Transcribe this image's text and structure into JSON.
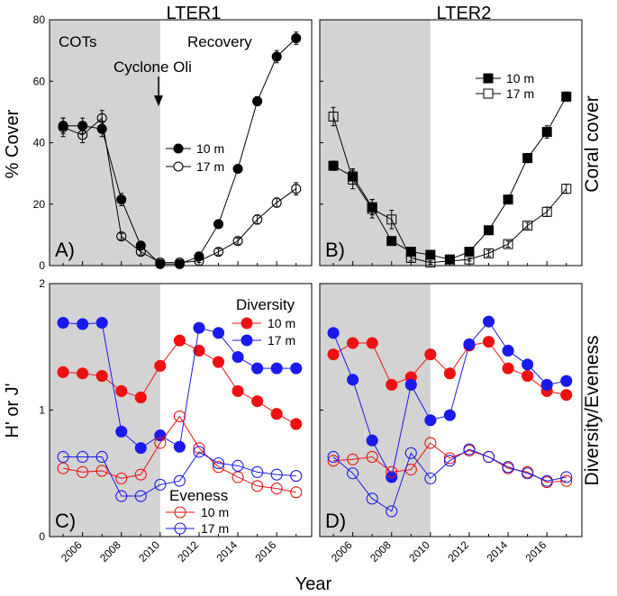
{
  "figure": {
    "col_titles": [
      "LTER1",
      "LTER2"
    ],
    "xlabel": "Year",
    "ylabel_top": "% Cover",
    "ylabel_bottom": "H' or J'",
    "side_top": "Coral cover",
    "side_bottom": "Diversity/Eveness"
  },
  "chart_data": [
    {
      "id": "A",
      "label": "A)",
      "type": "line",
      "title": "LTER1",
      "xlim": [
        2004.3,
        2017.8
      ],
      "ylim": [
        0,
        80
      ],
      "yticks": [
        0,
        20,
        40,
        60,
        80
      ],
      "xticks": [
        2006,
        2008,
        2010,
        2012,
        2014,
        2016
      ],
      "shade_x": [
        2004.3,
        2010
      ],
      "annotations": [
        "COTs",
        "Recovery",
        "Cyclone Oli"
      ],
      "legend": [
        "10 m",
        "17 m"
      ],
      "series": [
        {
          "name": "10 m",
          "marker": "circle",
          "filled": true,
          "color": "#000000",
          "x": [
            2005,
            2006,
            2007,
            2008,
            2009,
            2010,
            2011,
            2012,
            2013,
            2014,
            2015,
            2016,
            2017
          ],
          "y": [
            45.5,
            45.5,
            44.5,
            21.5,
            6.5,
            0.5,
            0.5,
            3,
            13.5,
            31.5,
            53.5,
            68,
            74
          ],
          "err": [
            2.5,
            2.5,
            2.5,
            2,
            1,
            0.5,
            0.5,
            1,
            1,
            1,
            1.5,
            2,
            2
          ]
        },
        {
          "name": "17 m",
          "marker": "circle",
          "filled": false,
          "color": "#000000",
          "x": [
            2005,
            2006,
            2007,
            2008,
            2009,
            2010,
            2011,
            2012,
            2013,
            2014,
            2015,
            2016,
            2017
          ],
          "y": [
            45,
            42.5,
            48,
            9.5,
            4.5,
            1,
            1,
            1.5,
            4.5,
            8,
            15,
            20.5,
            25
          ],
          "err": [
            3,
            2.5,
            2.5,
            1,
            1,
            0.5,
            0.5,
            0.5,
            1,
            1,
            1.5,
            1.5,
            2
          ]
        }
      ]
    },
    {
      "id": "B",
      "label": "B)",
      "type": "line",
      "title": "LTER2",
      "xlim": [
        2004.3,
        2017.8
      ],
      "ylim": [
        0,
        80
      ],
      "yticks": [
        0,
        20,
        40,
        60,
        80
      ],
      "xticks": [
        2006,
        2008,
        2010,
        2012,
        2014,
        2016
      ],
      "shade_x": [
        2004.3,
        2010
      ],
      "legend": [
        "10 m",
        "17 m"
      ],
      "series": [
        {
          "name": "10 m",
          "marker": "square",
          "filled": true,
          "color": "#000000",
          "x": [
            2005,
            2006,
            2007,
            2008,
            2009,
            2010,
            2011,
            2012,
            2013,
            2014,
            2015,
            2016,
            2017
          ],
          "y": [
            32.5,
            29,
            19,
            8,
            4.5,
            3.5,
            2,
            4.5,
            11.5,
            21.5,
            35,
            43.5,
            55
          ],
          "err": [
            1.5,
            2.5,
            2.5,
            1,
            1,
            1,
            0.5,
            1,
            1,
            1,
            1.5,
            2,
            1.5
          ]
        },
        {
          "name": "17 m",
          "marker": "square",
          "filled": false,
          "color": "#000000",
          "x": [
            2005,
            2006,
            2007,
            2008,
            2009,
            2010,
            2011,
            2012,
            2013,
            2014,
            2015,
            2016,
            2017
          ],
          "y": [
            48.5,
            28,
            18.5,
            15,
            2.5,
            1,
            1.5,
            2,
            4,
            7,
            13,
            17.5,
            25
          ],
          "err": [
            3,
            3,
            3,
            3,
            1,
            0.5,
            0.5,
            0.5,
            1,
            1,
            1,
            1.5,
            1.5
          ]
        }
      ]
    },
    {
      "id": "C",
      "label": "C)",
      "type": "line",
      "xlim": [
        2004.3,
        2017.8
      ],
      "ylim": [
        0,
        2
      ],
      "yticks": [
        0,
        1,
        2
      ],
      "xticks": [
        2006,
        2008,
        2010,
        2012,
        2014,
        2016
      ],
      "shade_x": [
        2004.3,
        2010
      ],
      "legend_groups": [
        {
          "title": "Diversity",
          "items": [
            "10 m",
            "17 m"
          ]
        },
        {
          "title": "Eveness",
          "items": [
            "10 m",
            "17 m"
          ]
        }
      ],
      "series": [
        {
          "name": "Diversity 10 m",
          "marker": "circle",
          "filled": true,
          "color": "#ee1111",
          "x": [
            2005,
            2006,
            2007,
            2008,
            2009,
            2010,
            2011,
            2012,
            2013,
            2014,
            2015,
            2016,
            2017
          ],
          "y": [
            1.3,
            1.29,
            1.27,
            1.15,
            1.1,
            1.35,
            1.55,
            1.47,
            1.38,
            1.15,
            1.07,
            0.97,
            0.89
          ]
        },
        {
          "name": "Diversity 17 m",
          "marker": "circle",
          "filled": true,
          "color": "#1a1aee",
          "x": [
            2005,
            2006,
            2007,
            2008,
            2009,
            2010,
            2011,
            2012,
            2013,
            2014,
            2015,
            2016,
            2017
          ],
          "y": [
            1.69,
            1.68,
            1.69,
            0.83,
            0.7,
            0.8,
            0.71,
            1.65,
            1.61,
            1.42,
            1.33,
            1.33,
            1.33
          ]
        },
        {
          "name": "Eveness 10 m",
          "marker": "circle",
          "filled": false,
          "color": "#ee1111",
          "x": [
            2005,
            2006,
            2007,
            2008,
            2009,
            2010,
            2011,
            2012,
            2013,
            2014,
            2015,
            2016,
            2017
          ],
          "y": [
            0.54,
            0.51,
            0.52,
            0.46,
            0.49,
            0.74,
            0.95,
            0.7,
            0.55,
            0.47,
            0.4,
            0.38,
            0.35
          ]
        },
        {
          "name": "Eveness 17 m",
          "marker": "circle",
          "filled": false,
          "color": "#1a1aee",
          "x": [
            2005,
            2006,
            2007,
            2008,
            2009,
            2010,
            2011,
            2012,
            2013,
            2014,
            2015,
            2016,
            2017
          ],
          "y": [
            0.63,
            0.63,
            0.63,
            0.32,
            0.32,
            0.41,
            0.44,
            0.67,
            0.58,
            0.56,
            0.51,
            0.49,
            0.48
          ]
        }
      ]
    },
    {
      "id": "D",
      "label": "D)",
      "type": "line",
      "xlim": [
        2004.3,
        2017.8
      ],
      "ylim": [
        0,
        2
      ],
      "yticks": [
        0,
        1,
        2
      ],
      "xticks": [
        2006,
        2008,
        2010,
        2012,
        2014,
        2016
      ],
      "shade_x": [
        2004.3,
        2010
      ],
      "series": [
        {
          "name": "Diversity 10 m",
          "marker": "circle",
          "filled": true,
          "color": "#ee1111",
          "x": [
            2005,
            2006,
            2007,
            2008,
            2009,
            2010,
            2011,
            2012,
            2013,
            2014,
            2015,
            2016,
            2017
          ],
          "y": [
            1.44,
            1.53,
            1.53,
            1.2,
            1.26,
            1.44,
            1.29,
            1.51,
            1.54,
            1.33,
            1.27,
            1.15,
            1.12
          ]
        },
        {
          "name": "Diversity 17 m",
          "marker": "circle",
          "filled": true,
          "color": "#1a1aee",
          "x": [
            2005,
            2006,
            2007,
            2008,
            2009,
            2010,
            2011,
            2012,
            2013,
            2014,
            2015,
            2016,
            2017
          ],
          "y": [
            1.61,
            1.24,
            0.76,
            0.47,
            1.2,
            0.92,
            0.96,
            1.52,
            1.7,
            1.47,
            1.36,
            1.2,
            1.23
          ]
        },
        {
          "name": "Eveness 10 m",
          "marker": "circle",
          "filled": false,
          "color": "#ee1111",
          "x": [
            2005,
            2006,
            2007,
            2008,
            2009,
            2010,
            2011,
            2012,
            2013,
            2014,
            2015,
            2016,
            2017
          ],
          "y": [
            0.6,
            0.61,
            0.63,
            0.51,
            0.53,
            0.74,
            0.62,
            0.68,
            0.63,
            0.54,
            0.51,
            0.43,
            0.44
          ]
        },
        {
          "name": "Eveness 17 m",
          "marker": "circle",
          "filled": false,
          "color": "#1a1aee",
          "x": [
            2005,
            2006,
            2007,
            2008,
            2009,
            2010,
            2011,
            2012,
            2013,
            2014,
            2015,
            2016,
            2017
          ],
          "y": [
            0.63,
            0.5,
            0.3,
            0.2,
            0.66,
            0.46,
            0.6,
            0.69,
            0.63,
            0.55,
            0.5,
            0.44,
            0.47
          ]
        }
      ]
    }
  ]
}
